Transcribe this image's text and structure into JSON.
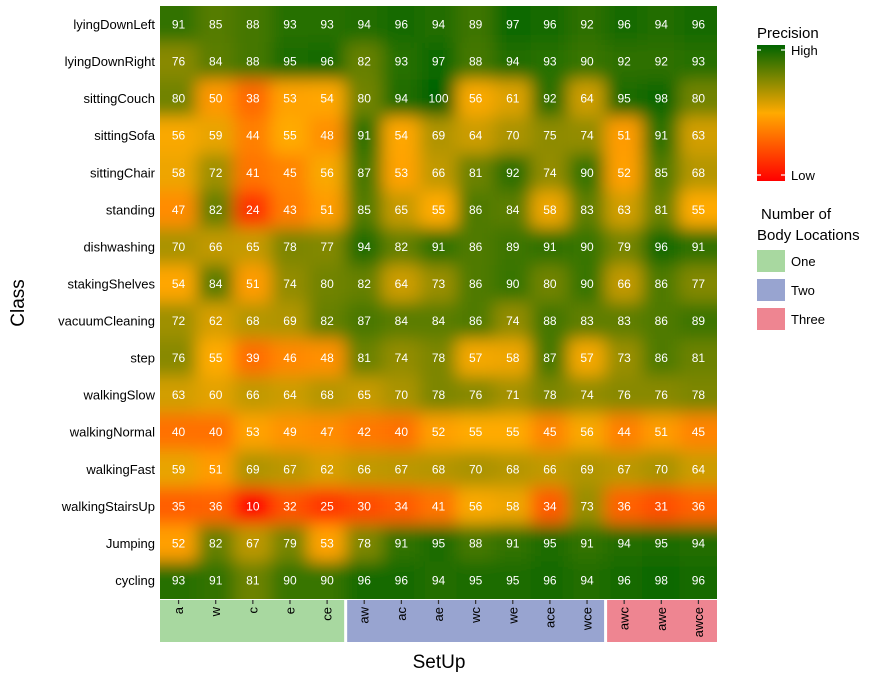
{
  "chart_data": {
    "type": "heatmap",
    "xlabel": "SetUp",
    "ylabel": "Class",
    "rows": [
      "lyingDownLeft",
      "lyingDownRight",
      "sittingCouch",
      "sittingSofa",
      "sittingChair",
      "standing",
      "dishwashing",
      "stakingShelves",
      "vacuumCleaning",
      "step",
      "walkingSlow",
      "walkingNormal",
      "walkingFast",
      "walkingStairsUp",
      "Jumping",
      "cycling"
    ],
    "columns": [
      "a",
      "w",
      "c",
      "e",
      "ce",
      "aw",
      "ac",
      "ae",
      "wc",
      "we",
      "ace",
      "wce",
      "awc",
      "awe",
      "awce"
    ],
    "values": [
      [
        91,
        85,
        88,
        93,
        93,
        94,
        96,
        94,
        89,
        97,
        96,
        92,
        96,
        94,
        96
      ],
      [
        76,
        84,
        88,
        95,
        96,
        82,
        93,
        97,
        88,
        94,
        93,
        90,
        92,
        92,
        93
      ],
      [
        80,
        50,
        38,
        53,
        54,
        80,
        94,
        100,
        56,
        61,
        92,
        64,
        95,
        98,
        80
      ],
      [
        56,
        59,
        44,
        55,
        48,
        91,
        54,
        69,
        64,
        70,
        75,
        74,
        51,
        91,
        63
      ],
      [
        58,
        72,
        41,
        45,
        56,
        87,
        53,
        66,
        81,
        92,
        74,
        90,
        52,
        85,
        68
      ],
      [
        47,
        82,
        24,
        43,
        51,
        85,
        65,
        55,
        86,
        84,
        58,
        83,
        63,
        81,
        55
      ],
      [
        70,
        66,
        65,
        78,
        77,
        94,
        82,
        91,
        86,
        89,
        91,
        90,
        79,
        96,
        91
      ],
      [
        54,
        84,
        51,
        74,
        80,
        82,
        64,
        73,
        86,
        90,
        80,
        90,
        66,
        86,
        77
      ],
      [
        72,
        62,
        68,
        69,
        82,
        87,
        84,
        84,
        86,
        74,
        88,
        83,
        83,
        86,
        89
      ],
      [
        76,
        55,
        39,
        46,
        48,
        81,
        74,
        78,
        57,
        58,
        87,
        57,
        73,
        86,
        81
      ],
      [
        63,
        60,
        66,
        64,
        68,
        65,
        70,
        78,
        76,
        71,
        78,
        74,
        76,
        76,
        78
      ],
      [
        40,
        40,
        53,
        49,
        47,
        42,
        40,
        52,
        55,
        55,
        45,
        56,
        44,
        51,
        45
      ],
      [
        59,
        51,
        69,
        67,
        62,
        66,
        67,
        68,
        70,
        68,
        66,
        69,
        67,
        70,
        64
      ],
      [
        35,
        36,
        10,
        32,
        25,
        30,
        34,
        41,
        56,
        58,
        34,
        73,
        36,
        31,
        36
      ],
      [
        52,
        82,
        67,
        79,
        53,
        78,
        91,
        95,
        88,
        91,
        95,
        91,
        94,
        95,
        94
      ],
      [
        93,
        91,
        81,
        90,
        90,
        96,
        96,
        94,
        95,
        95,
        96,
        94,
        96,
        98,
        96
      ]
    ],
    "column_groups": [
      {
        "name": "One",
        "columns": [
          "a",
          "w",
          "c",
          "e",
          "ce"
        ],
        "color": "#a8d8a0"
      },
      {
        "name": "Two",
        "columns": [
          "aw",
          "ac",
          "ae",
          "wc",
          "we",
          "ace",
          "wce"
        ],
        "color": "#98a4d0"
      },
      {
        "name": "Three",
        "columns": [
          "awc",
          "awe",
          "awce"
        ],
        "color": "#ee8591"
      }
    ],
    "color_scale": {
      "title": "Precision",
      "high_label": "High",
      "low_label": "Low",
      "stops": [
        "#ff0000",
        "#ffaa00",
        "#006400"
      ]
    },
    "group_legend_title": "Number of Body Locations",
    "group_legend_title_lines": [
      "Number of",
      "Body Locations"
    ]
  }
}
